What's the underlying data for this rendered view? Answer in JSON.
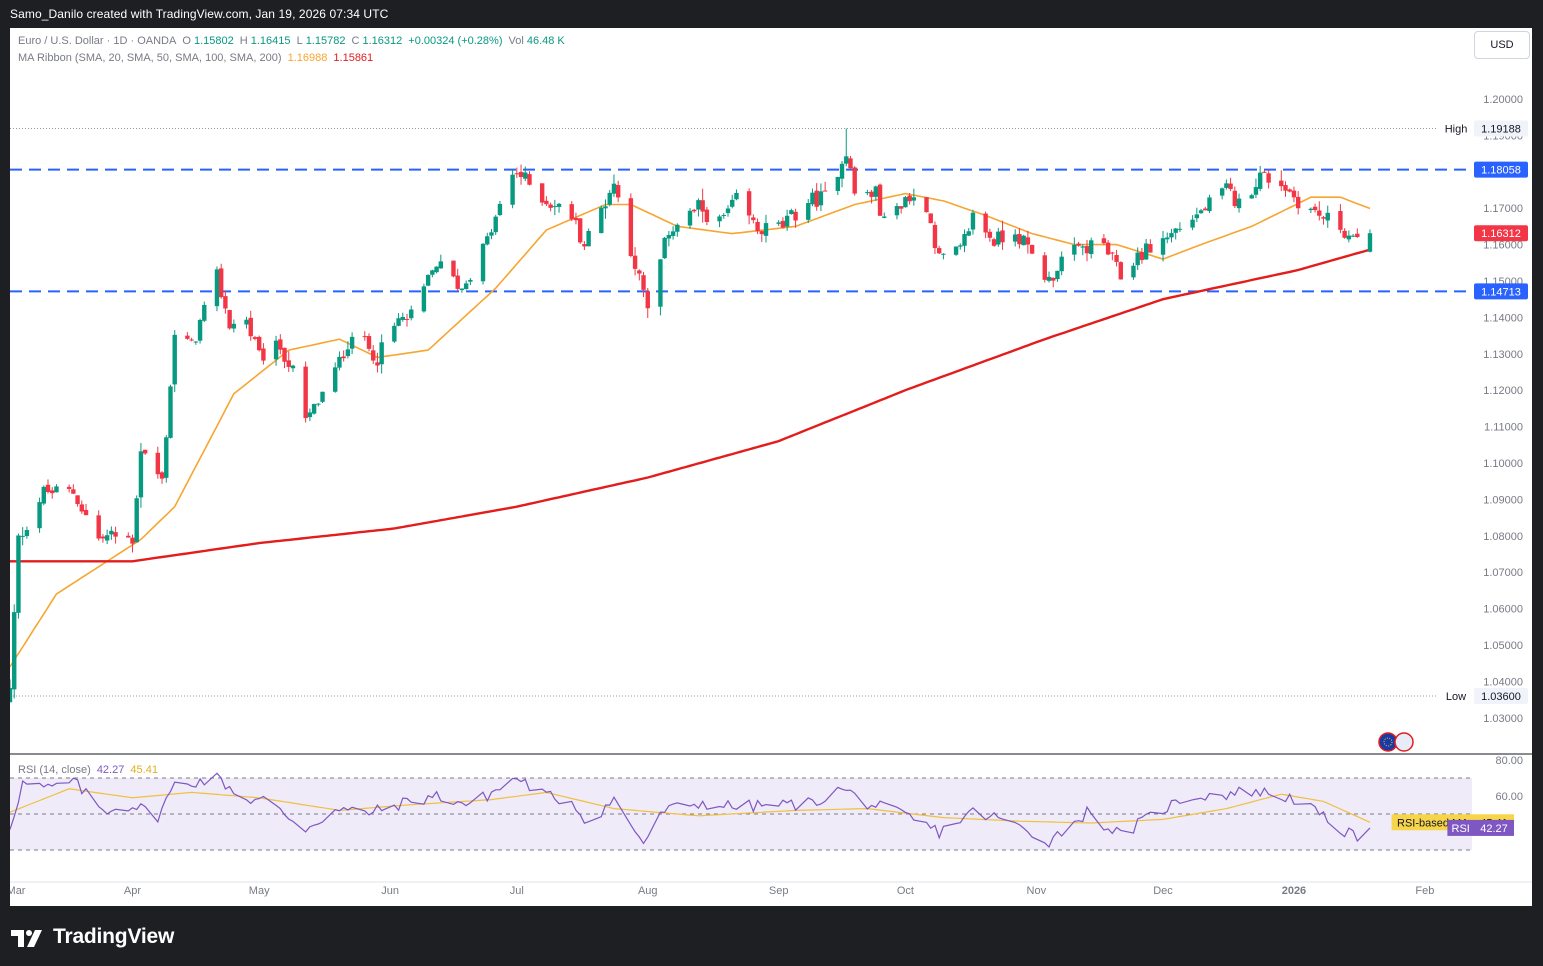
{
  "header": {
    "caption": "Samo_Danilo created with TradingView.com, Jan 19, 2026 07:34 UTC"
  },
  "legend": {
    "symbol": "Euro / U.S. Dollar · 1D · OANDA",
    "open_label": "O",
    "open": "1.15802",
    "high_label": "H",
    "high": "1.16415",
    "low_label": "L",
    "low": "1.15782",
    "close_label": "C",
    "close": "1.16312",
    "change": "+0.00324 (+0.28%)",
    "vol_label": "Vol",
    "vol": "46.48 K",
    "ma_label": "MA Ribbon (SMA, 20, SMA, 50, SMA, 100, SMA, 200)",
    "ma1": "1.16988",
    "ma2": "1.15861"
  },
  "currency_button": "USD",
  "footer": {
    "brand": "TradingView"
  },
  "colors": {
    "up": "#089981",
    "down": "#f23645",
    "sma20": "#f7a531",
    "sma200": "#e31c1c",
    "level_line": "#2962ff",
    "rsi_line": "#7e57c2",
    "rsi_ma": "#f0c040",
    "rsi_band": "#efebf8"
  },
  "chart_data": [
    {
      "type": "candlestick",
      "symbol": "EUR/USD",
      "timeframe": "1D",
      "ylim": [
        1.025,
        1.2085
      ],
      "y_ticks": [
        "1.20000",
        "1.19000",
        "1.18000",
        "1.17000",
        "1.16000",
        "1.15000",
        "1.14000",
        "1.13000",
        "1.12000",
        "1.11000",
        "1.10000",
        "1.09000",
        "1.08000",
        "1.07000",
        "1.06000",
        "1.05000",
        "1.04000",
        "1.03000"
      ],
      "x_ticks": [
        "Mar",
        "Apr",
        "May",
        "Jun",
        "Jul",
        "Aug",
        "Sep",
        "Oct",
        "Nov",
        "Dec",
        "2026",
        "Feb"
      ],
      "x_range": [
        "2025-03-03",
        "2026-02-06"
      ],
      "grid": false,
      "horizontal_levels": [
        {
          "label": "",
          "value": 1.18058,
          "text": "1.18058",
          "style": "dashed"
        },
        {
          "label": "",
          "value": 1.14713,
          "text": "1.14713",
          "style": "dashed"
        }
      ],
      "high_marker": {
        "label": "High",
        "value": 1.19188,
        "text": "1.19188"
      },
      "low_marker": {
        "label": "Low",
        "value": 1.036,
        "text": "1.03600"
      },
      "last_price": {
        "value": 1.16312,
        "text": "1.16312"
      },
      "anchors": [
        [
          "2025-03-03",
          1.0375
        ],
        [
          "2025-03-05",
          1.079
        ],
        [
          "2025-03-11",
          1.092
        ],
        [
          "2025-03-18",
          1.092
        ],
        [
          "2025-03-24",
          1.079
        ],
        [
          "2025-03-27",
          1.08
        ],
        [
          "2025-04-01",
          1.079
        ],
        [
          "2025-04-03",
          1.104
        ],
        [
          "2025-04-08",
          1.095
        ],
        [
          "2025-04-11",
          1.135
        ],
        [
          "2025-04-15",
          1.132
        ],
        [
          "2025-04-21",
          1.151
        ],
        [
          "2025-04-24",
          1.138
        ],
        [
          "2025-04-28",
          1.139
        ],
        [
          "2025-05-01",
          1.129
        ],
        [
          "2025-05-06",
          1.132
        ],
        [
          "2025-05-09",
          1.125
        ],
        [
          "2025-05-12",
          1.111
        ],
        [
          "2025-05-19",
          1.125
        ],
        [
          "2025-05-23",
          1.136
        ],
        [
          "2025-05-29",
          1.129
        ],
        [
          "2025-06-03",
          1.139
        ],
        [
          "2025-06-06",
          1.14
        ],
        [
          "2025-06-12",
          1.155
        ],
        [
          "2025-06-18",
          1.148
        ],
        [
          "2025-06-24",
          1.161
        ],
        [
          "2025-06-30",
          1.179
        ],
        [
          "2025-07-01",
          1.18
        ],
        [
          "2025-07-08",
          1.172
        ],
        [
          "2025-07-14",
          1.168
        ],
        [
          "2025-07-17",
          1.16
        ],
        [
          "2025-07-24",
          1.177
        ],
        [
          "2025-07-28",
          1.159
        ],
        [
          "2025-08-01",
          1.142
        ],
        [
          "2025-08-06",
          1.164
        ],
        [
          "2025-08-13",
          1.17
        ],
        [
          "2025-08-18",
          1.166
        ],
        [
          "2025-08-22",
          1.172
        ],
        [
          "2025-08-27",
          1.164
        ],
        [
          "2025-09-02",
          1.165
        ],
        [
          "2025-09-08",
          1.172
        ],
        [
          "2025-09-12",
          1.173
        ],
        [
          "2025-09-17",
          1.186
        ],
        [
          "2025-09-19",
          1.174
        ],
        [
          "2025-09-24",
          1.174
        ],
        [
          "2025-09-26",
          1.166
        ],
        [
          "2025-10-01",
          1.173
        ],
        [
          "2025-10-06",
          1.171
        ],
        [
          "2025-10-09",
          1.156
        ],
        [
          "2025-10-14",
          1.158
        ],
        [
          "2025-10-17",
          1.168
        ],
        [
          "2025-10-22",
          1.161
        ],
        [
          "2025-10-27",
          1.164
        ],
        [
          "2025-11-04",
          1.15
        ],
        [
          "2025-11-07",
          1.156
        ],
        [
          "2025-11-12",
          1.159
        ],
        [
          "2025-11-17",
          1.16
        ],
        [
          "2025-11-21",
          1.151
        ],
        [
          "2025-11-25",
          1.157
        ],
        [
          "2025-12-02",
          1.162
        ],
        [
          "2025-12-05",
          1.165
        ],
        [
          "2025-12-10",
          1.169
        ],
        [
          "2025-12-16",
          1.175
        ],
        [
          "2025-12-19",
          1.171
        ],
        [
          "2025-12-24",
          1.179
        ],
        [
          "2025-12-29",
          1.177
        ],
        [
          "2026-01-02",
          1.172
        ],
        [
          "2026-01-07",
          1.168
        ],
        [
          "2026-01-12",
          1.165
        ],
        [
          "2026-01-15",
          1.161
        ],
        [
          "2026-01-16",
          1.16
        ],
        [
          "2026-01-19",
          1.16312
        ]
      ],
      "series": [
        {
          "name": "SMA 20",
          "key": "sma20",
          "last": "1.16988",
          "anchors": [
            [
              "2025-03-03",
              1.044
            ],
            [
              "2025-03-14",
              1.064
            ],
            [
              "2025-04-03",
              1.079
            ],
            [
              "2025-04-11",
              1.088
            ],
            [
              "2025-04-25",
              1.119
            ],
            [
              "2025-05-08",
              1.131
            ],
            [
              "2025-05-20",
              1.134
            ],
            [
              "2025-05-29",
              1.129
            ],
            [
              "2025-06-10",
              1.131
            ],
            [
              "2025-06-26",
              1.148
            ],
            [
              "2025-07-08",
              1.164
            ],
            [
              "2025-07-22",
              1.171
            ],
            [
              "2025-07-28",
              1.171
            ],
            [
              "2025-08-08",
              1.165
            ],
            [
              "2025-08-21",
              1.163
            ],
            [
              "2025-09-05",
              1.165
            ],
            [
              "2025-09-19",
              1.171
            ],
            [
              "2025-10-01",
              1.174
            ],
            [
              "2025-10-10",
              1.172
            ],
            [
              "2025-10-20",
              1.168
            ],
            [
              "2025-10-31",
              1.163
            ],
            [
              "2025-11-10",
              1.16
            ],
            [
              "2025-11-20",
              1.16
            ],
            [
              "2025-12-01",
              1.156
            ],
            [
              "2025-12-10",
              1.16
            ],
            [
              "2025-12-22",
              1.165
            ],
            [
              "2026-01-05",
              1.173
            ],
            [
              "2026-01-12",
              1.173
            ],
            [
              "2026-01-19",
              1.1699
            ]
          ]
        },
        {
          "name": "SMA 200",
          "key": "sma200",
          "last": "1.15861",
          "anchors": [
            [
              "2025-03-03",
              1.073
            ],
            [
              "2025-04-01",
              1.073
            ],
            [
              "2025-05-01",
              1.078
            ],
            [
              "2025-06-02",
              1.082
            ],
            [
              "2025-07-01",
              1.088
            ],
            [
              "2025-08-01",
              1.096
            ],
            [
              "2025-09-01",
              1.106
            ],
            [
              "2025-10-01",
              1.12
            ],
            [
              "2025-11-03",
              1.134
            ],
            [
              "2025-12-01",
              1.145
            ],
            [
              "2026-01-02",
              1.153
            ],
            [
              "2026-01-19",
              1.1586
            ]
          ]
        }
      ]
    },
    {
      "type": "line",
      "name": "RSI (14, close)",
      "ylim": [
        20,
        80
      ],
      "y_ticks": [
        "80.00",
        "60.00"
      ],
      "bands": [
        70,
        50,
        30
      ],
      "rsi_last": "42.27",
      "rsi_ma_last": "45.41",
      "rsi_label": "RSI",
      "rsi_ma_label": "RSI-based MA",
      "rsi_anchors": [
        [
          "2025-03-03",
          43
        ],
        [
          "2025-03-06",
          67
        ],
        [
          "2025-03-12",
          64
        ],
        [
          "2025-03-18",
          68
        ],
        [
          "2025-03-25",
          52
        ],
        [
          "2025-04-01",
          55
        ],
        [
          "2025-04-07",
          49
        ],
        [
          "2025-04-11",
          66
        ],
        [
          "2025-04-21",
          70
        ],
        [
          "2025-04-28",
          58
        ],
        [
          "2025-05-02",
          58
        ],
        [
          "2025-05-12",
          42
        ],
        [
          "2025-05-19",
          52
        ],
        [
          "2025-05-28",
          51
        ],
        [
          "2025-06-04",
          56
        ],
        [
          "2025-06-12",
          60
        ],
        [
          "2025-06-20",
          55
        ],
        [
          "2025-06-26",
          63
        ],
        [
          "2025-07-01",
          70
        ],
        [
          "2025-07-08",
          60
        ],
        [
          "2025-07-14",
          57
        ],
        [
          "2025-07-18",
          45
        ],
        [
          "2025-07-24",
          58
        ],
        [
          "2025-07-31",
          34
        ],
        [
          "2025-08-05",
          52
        ],
        [
          "2025-08-13",
          56
        ],
        [
          "2025-08-22",
          54
        ],
        [
          "2025-09-01",
          55
        ],
        [
          "2025-09-09",
          56
        ],
        [
          "2025-09-16",
          64
        ],
        [
          "2025-09-22",
          56
        ],
        [
          "2025-10-01",
          49
        ],
        [
          "2025-10-09",
          40
        ],
        [
          "2025-10-17",
          51
        ],
        [
          "2025-10-24",
          47
        ],
        [
          "2025-11-04",
          35
        ],
        [
          "2025-11-13",
          51
        ],
        [
          "2025-11-21",
          38
        ],
        [
          "2025-12-01",
          53
        ],
        [
          "2025-12-08",
          60
        ],
        [
          "2025-12-16",
          61
        ],
        [
          "2025-12-22",
          63
        ],
        [
          "2026-01-02",
          58
        ],
        [
          "2026-01-09",
          46
        ],
        [
          "2026-01-16",
          36
        ],
        [
          "2026-01-19",
          42.27
        ]
      ],
      "rsi_ma_anchors": [
        [
          "2025-03-03",
          51
        ],
        [
          "2025-03-17",
          64
        ],
        [
          "2025-04-01",
          59
        ],
        [
          "2025-04-15",
          62
        ],
        [
          "2025-05-01",
          59
        ],
        [
          "2025-05-20",
          52
        ],
        [
          "2025-06-05",
          55
        ],
        [
          "2025-06-25",
          58
        ],
        [
          "2025-07-08",
          62
        ],
        [
          "2025-07-24",
          53
        ],
        [
          "2025-08-13",
          49
        ],
        [
          "2025-09-05",
          52
        ],
        [
          "2025-09-22",
          53
        ],
        [
          "2025-10-10",
          48
        ],
        [
          "2025-10-28",
          46
        ],
        [
          "2025-11-14",
          45
        ],
        [
          "2025-12-01",
          47
        ],
        [
          "2025-12-16",
          53
        ],
        [
          "2025-12-29",
          61
        ],
        [
          "2026-01-08",
          57
        ],
        [
          "2026-01-19",
          45.41
        ]
      ]
    }
  ]
}
